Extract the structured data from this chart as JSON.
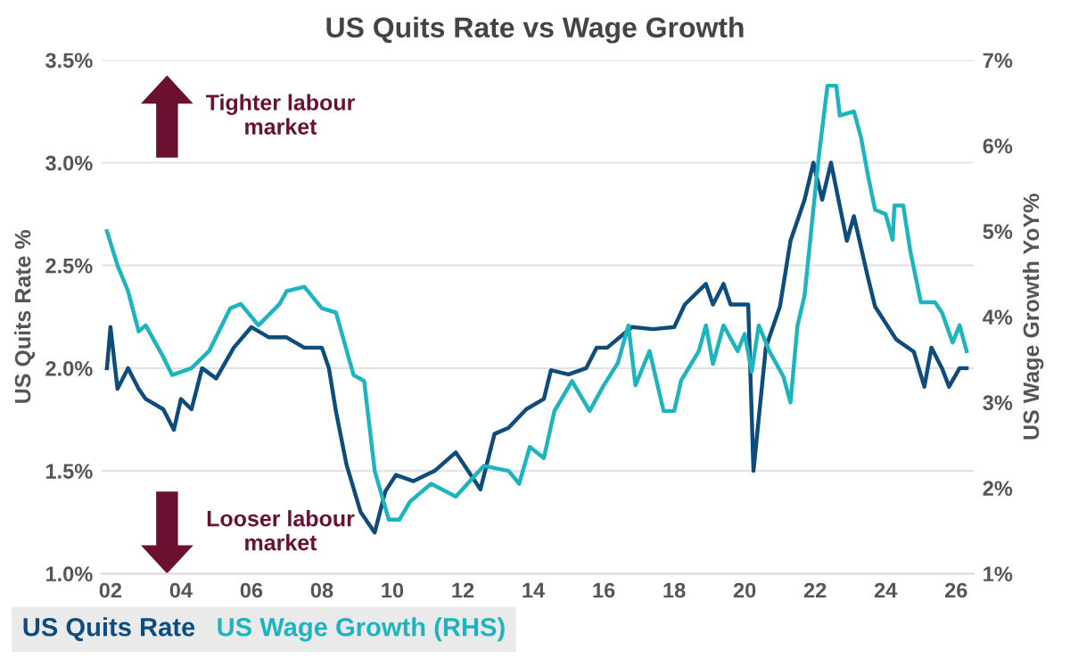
{
  "chart_data": {
    "type": "line",
    "title": "US Quits Rate vs Wage Growth",
    "ylabel": "US Quits Rate %",
    "y2label": "US Wage Growth YoY%",
    "annotations": [
      "Tighter labour market",
      "Looser labour market"
    ],
    "series": [
      {
        "name": "US Quits Rate",
        "color": "#0e4c7c",
        "x": [
          2001.9,
          2002.0,
          2002.2,
          2002.5,
          2002.8,
          2003.0,
          2003.5,
          2003.8,
          2004.0,
          2004.3,
          2004.6,
          2005.0,
          2005.5,
          2006.0,
          2006.5,
          2007.0,
          2007.5,
          2008.0,
          2008.2,
          2008.4,
          2008.7,
          2009.1,
          2009.5,
          2009.8,
          2010.1,
          2010.6,
          2011.2,
          2011.8,
          2012.5,
          2012.9,
          2013.3,
          2013.8,
          2014.3,
          2014.5,
          2015.0,
          2015.5,
          2015.8,
          2016.1,
          2016.8,
          2017.4,
          2018.0,
          2018.3,
          2018.9,
          2019.1,
          2019.4,
          2019.6,
          2020.1,
          2020.25,
          2020.6,
          2021.0,
          2021.3,
          2021.7,
          2021.95,
          2022.2,
          2022.45,
          2022.9,
          2023.1,
          2023.5,
          2023.7,
          2024.3,
          2024.8,
          2025.1,
          2025.3,
          2025.6,
          2025.8,
          2026.1,
          2026.3
        ],
        "values": [
          2.0,
          2.2,
          1.9,
          2.0,
          1.9,
          1.85,
          1.8,
          1.7,
          1.85,
          1.8,
          2.0,
          1.95,
          2.1,
          2.2,
          2.15,
          2.15,
          2.1,
          2.1,
          2.0,
          1.79,
          1.53,
          1.3,
          1.2,
          1.4,
          1.48,
          1.45,
          1.5,
          1.59,
          1.41,
          1.68,
          1.71,
          1.8,
          1.85,
          1.99,
          1.97,
          2.0,
          2.1,
          2.1,
          2.2,
          2.19,
          2.2,
          2.31,
          2.41,
          2.31,
          2.41,
          2.31,
          2.31,
          1.5,
          2.1,
          2.3,
          2.62,
          2.82,
          3.0,
          2.82,
          3.0,
          2.62,
          2.74,
          2.44,
          2.3,
          2.14,
          2.08,
          1.91,
          2.1,
          2.0,
          1.91,
          2.0,
          2.0
        ]
      },
      {
        "name": "US Wage Growth (RHS)",
        "color": "#1db4c0",
        "axis": "y2",
        "x": [
          2001.9,
          2002.2,
          2002.5,
          2002.8,
          2003.0,
          2003.5,
          2003.75,
          2004.3,
          2004.8,
          2005.4,
          2005.7,
          2006.2,
          2006.8,
          2007.0,
          2007.5,
          2008.0,
          2008.4,
          2008.9,
          2009.2,
          2009.5,
          2009.9,
          2010.2,
          2010.5,
          2011.1,
          2011.8,
          2012.6,
          2013.3,
          2013.6,
          2013.9,
          2014.3,
          2014.6,
          2015.1,
          2015.6,
          2016.0,
          2016.4,
          2016.7,
          2016.9,
          2017.3,
          2017.7,
          2018.0,
          2018.2,
          2018.7,
          2018.9,
          2019.1,
          2019.4,
          2019.8,
          2020.0,
          2020.2,
          2020.4,
          2020.7,
          2021.1,
          2021.3,
          2021.5,
          2021.7,
          2022.1,
          2022.35,
          2022.6,
          2022.7,
          2023.1,
          2023.3,
          2023.5,
          2023.7,
          2024.0,
          2024.2,
          2024.25,
          2024.5,
          2024.7,
          2025.0,
          2025.4,
          2025.6,
          2025.9,
          2026.1,
          2026.3
        ],
        "values": [
          5.0,
          4.6,
          4.3,
          3.83,
          3.9,
          3.53,
          3.32,
          3.4,
          3.6,
          4.1,
          4.15,
          3.9,
          4.15,
          4.3,
          4.35,
          4.1,
          4.05,
          3.32,
          3.25,
          2.2,
          1.63,
          1.63,
          1.84,
          2.05,
          1.9,
          2.26,
          2.2,
          2.05,
          2.48,
          2.35,
          2.9,
          3.25,
          2.9,
          3.2,
          3.46,
          3.9,
          3.2,
          3.6,
          2.9,
          2.9,
          3.26,
          3.6,
          3.9,
          3.45,
          3.9,
          3.6,
          3.8,
          3.36,
          3.9,
          3.6,
          3.3,
          3.0,
          3.9,
          4.25,
          5.86,
          6.7,
          6.7,
          6.35,
          6.4,
          6.1,
          5.65,
          5.25,
          5.2,
          4.9,
          5.3,
          5.3,
          4.77,
          4.17,
          4.17,
          4.05,
          3.7,
          3.9,
          3.6
        ]
      }
    ],
    "xlim": [
      2001.75,
      2026.5
    ],
    "xticks": [
      {
        "value": 2002,
        "label": "02"
      },
      {
        "value": 2004,
        "label": "04"
      },
      {
        "value": 2006,
        "label": "06"
      },
      {
        "value": 2008,
        "label": "08"
      },
      {
        "value": 2010,
        "label": "10"
      },
      {
        "value": 2012,
        "label": "12"
      },
      {
        "value": 2014,
        "label": "14"
      },
      {
        "value": 2016,
        "label": "16"
      },
      {
        "value": 2018,
        "label": "18"
      },
      {
        "value": 2020,
        "label": "20"
      },
      {
        "value": 2022,
        "label": "22"
      },
      {
        "value": 2024,
        "label": "24"
      },
      {
        "value": 2026,
        "label": "26"
      }
    ],
    "ylim": [
      1.0,
      3.5
    ],
    "yticks": [
      {
        "value": 1.0,
        "label": "1.0%"
      },
      {
        "value": 1.5,
        "label": "1.5%"
      },
      {
        "value": 2.0,
        "label": "2.0%"
      },
      {
        "value": 2.5,
        "label": "2.5%"
      },
      {
        "value": 3.0,
        "label": "3.0%"
      },
      {
        "value": 3.5,
        "label": "3.5%"
      }
    ],
    "y2lim": [
      1,
      7
    ],
    "y2ticks": [
      {
        "value": 1,
        "label": "1%"
      },
      {
        "value": 2,
        "label": "2%"
      },
      {
        "value": 3,
        "label": "3%"
      },
      {
        "value": 4,
        "label": "4%"
      },
      {
        "value": 5,
        "label": "5%"
      },
      {
        "value": 6,
        "label": "6%"
      },
      {
        "value": 7,
        "label": "7%"
      }
    ],
    "grid": "y",
    "legend": "bottom",
    "line_style": "solid",
    "marker": "none"
  }
}
